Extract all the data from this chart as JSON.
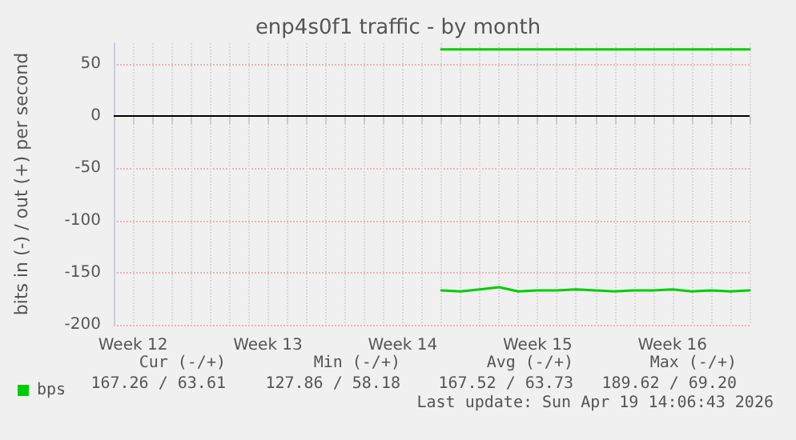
{
  "chart_data": {
    "type": "line",
    "title": "enp4s0f1 traffic - by month",
    "ylabel": "bits in (-) / out (+) per second",
    "categories": [
      null,
      "Week 12",
      null,
      null,
      null,
      null,
      null,
      null,
      "Week 13",
      null,
      null,
      null,
      null,
      null,
      null,
      "Week 14",
      null,
      null,
      null,
      null,
      null,
      null,
      "Week 15",
      null,
      null,
      null,
      null,
      null,
      null,
      "Week 16",
      null,
      null,
      null,
      null
    ],
    "series": [
      {
        "name": "bps",
        "color": "#00cc00",
        "values": [
          null,
          null,
          null,
          null,
          null,
          null,
          null,
          null,
          null,
          null,
          null,
          null,
          null,
          null,
          null,
          null,
          null,
          64,
          64,
          64,
          64,
          64,
          64,
          64,
          64,
          64,
          64,
          64,
          64,
          64,
          64,
          64,
          64,
          64
        ]
      },
      {
        "color": "#00cc00",
        "values": [
          null,
          null,
          null,
          null,
          null,
          null,
          null,
          null,
          null,
          null,
          null,
          null,
          null,
          null,
          null,
          null,
          null,
          -167,
          -168,
          -166,
          -164,
          -168,
          -167,
          -167,
          -166,
          -167,
          -168,
          -167,
          -167,
          -166,
          -168,
          -167,
          -168,
          -167
        ]
      }
    ],
    "ylim": [
      -200,
      70
    ],
    "yticks": [
      -200,
      -150,
      -100,
      -50,
      0,
      50
    ],
    "ref_lines": [
      {
        "axis": "y",
        "value": 0,
        "color": "#000000"
      }
    ],
    "grid": true,
    "legend": "bottom left",
    "marker": "none",
    "line_style": "solid",
    "annotations": [
      "Cur (-/+)",
      "Min (-/+)",
      "Avg (-/+)",
      "Max (-/+)",
      "167.26 / 63.61",
      "127.86 / 58.18",
      "167.52 / 63.73",
      "189.62 / 69.20",
      "Last update: Sun Apr 19 14:06:43 2026"
    ]
  }
}
